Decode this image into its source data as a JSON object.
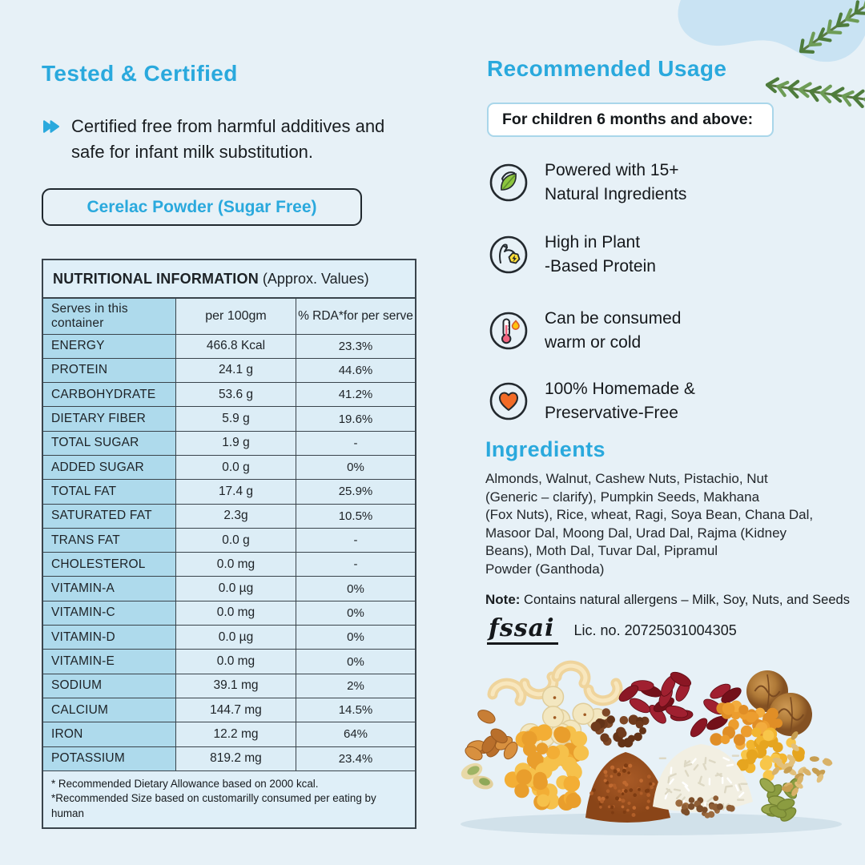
{
  "accent_color": "#2AA9DD",
  "background_color": "#E7F1F7",
  "tested": {
    "title": "Tested & Certified",
    "bullet_text": "Certified free from harmful additives and\nsafe for infant milk substitution.",
    "product_box_label": "Cerelac Powder (Sugar Free)"
  },
  "nutrition_table": {
    "title_bold": "NUTRITIONAL INFORMATION",
    "title_rest": " (Approx. Values)",
    "columns": [
      "Serves in this container",
      "per 100gm",
      "% RDA*for per serve"
    ],
    "rows": [
      [
        "ENERGY",
        "466.8 Kcal",
        "23.3%"
      ],
      [
        "PROTEIN",
        "24.1 g",
        "44.6%"
      ],
      [
        "CARBOHYDRATE",
        "53.6 g",
        "41.2%"
      ],
      [
        "DIETARY FIBER",
        "5.9 g",
        "19.6%"
      ],
      [
        "TOTAL SUGAR",
        "1.9 g",
        "-"
      ],
      [
        "ADDED SUGAR",
        "0.0 g",
        "0%"
      ],
      [
        "TOTAL FAT",
        "17.4 g",
        "25.9%"
      ],
      [
        "SATURATED FAT",
        "2.3g",
        "10.5%"
      ],
      [
        "TRANS FAT",
        "0.0 g",
        "-"
      ],
      [
        "CHOLESTEROL",
        "0.0 mg",
        "-"
      ],
      [
        "VITAMIN-A",
        "0.0 µg",
        "0%"
      ],
      [
        "VITAMIN-C",
        "0.0 mg",
        "0%"
      ],
      [
        "VITAMIN-D",
        "0.0 µg",
        "0%"
      ],
      [
        "VITAMIN-E",
        "0.0 mg",
        "0%"
      ],
      [
        "SODIUM",
        "39.1 mg",
        "2%"
      ],
      [
        "CALCIUM",
        "144.7 mg",
        "14.5%"
      ],
      [
        "IRON",
        "12.2 mg",
        "64%"
      ],
      [
        "POTASSIUM",
        "819.2 mg",
        "23.4%"
      ]
    ],
    "footnote_1": "* Recommended Dietary Allowance based on 2000 kcal.",
    "footnote_2": "*Recommended Size based on customarilly consumed per eating by human"
  },
  "usage": {
    "title": "Recommended Usage",
    "age_box_label": "For children 6 months and above:",
    "features": [
      {
        "icon": "leaf-icon",
        "text": "Powered with 15+\nNatural Ingredients"
      },
      {
        "icon": "muscle-icon",
        "text": "High in Plant\n-Based Protein"
      },
      {
        "icon": "thermometer-icon",
        "text": "Can be consumed\nwarm or cold"
      },
      {
        "icon": "heart-icon",
        "text": "100% Homemade &\nPreservative-Free"
      }
    ]
  },
  "ingredients": {
    "title": "Ingredients",
    "text": "Almonds, Walnut, Cashew Nuts, Pistachio, Nut\n(Generic – clarify), Pumpkin Seeds, Makhana\n(Fox Nuts), Rice, wheat, Ragi, Soya Bean, Chana Dal,\nMasoor Dal, Moong Dal, Urad Dal, Rajma (Kidney\nBeans), Moth Dal, Tuvar Dal, Pipramul\nPowder (Ganthoda)"
  },
  "note": {
    "label": "Note:",
    "text": " Contains natural allergens – Milk, Soy, Nuts, and Seeds"
  },
  "license": {
    "logo_text": "fssai",
    "number_text": "Lic. no. 20725031004305"
  }
}
